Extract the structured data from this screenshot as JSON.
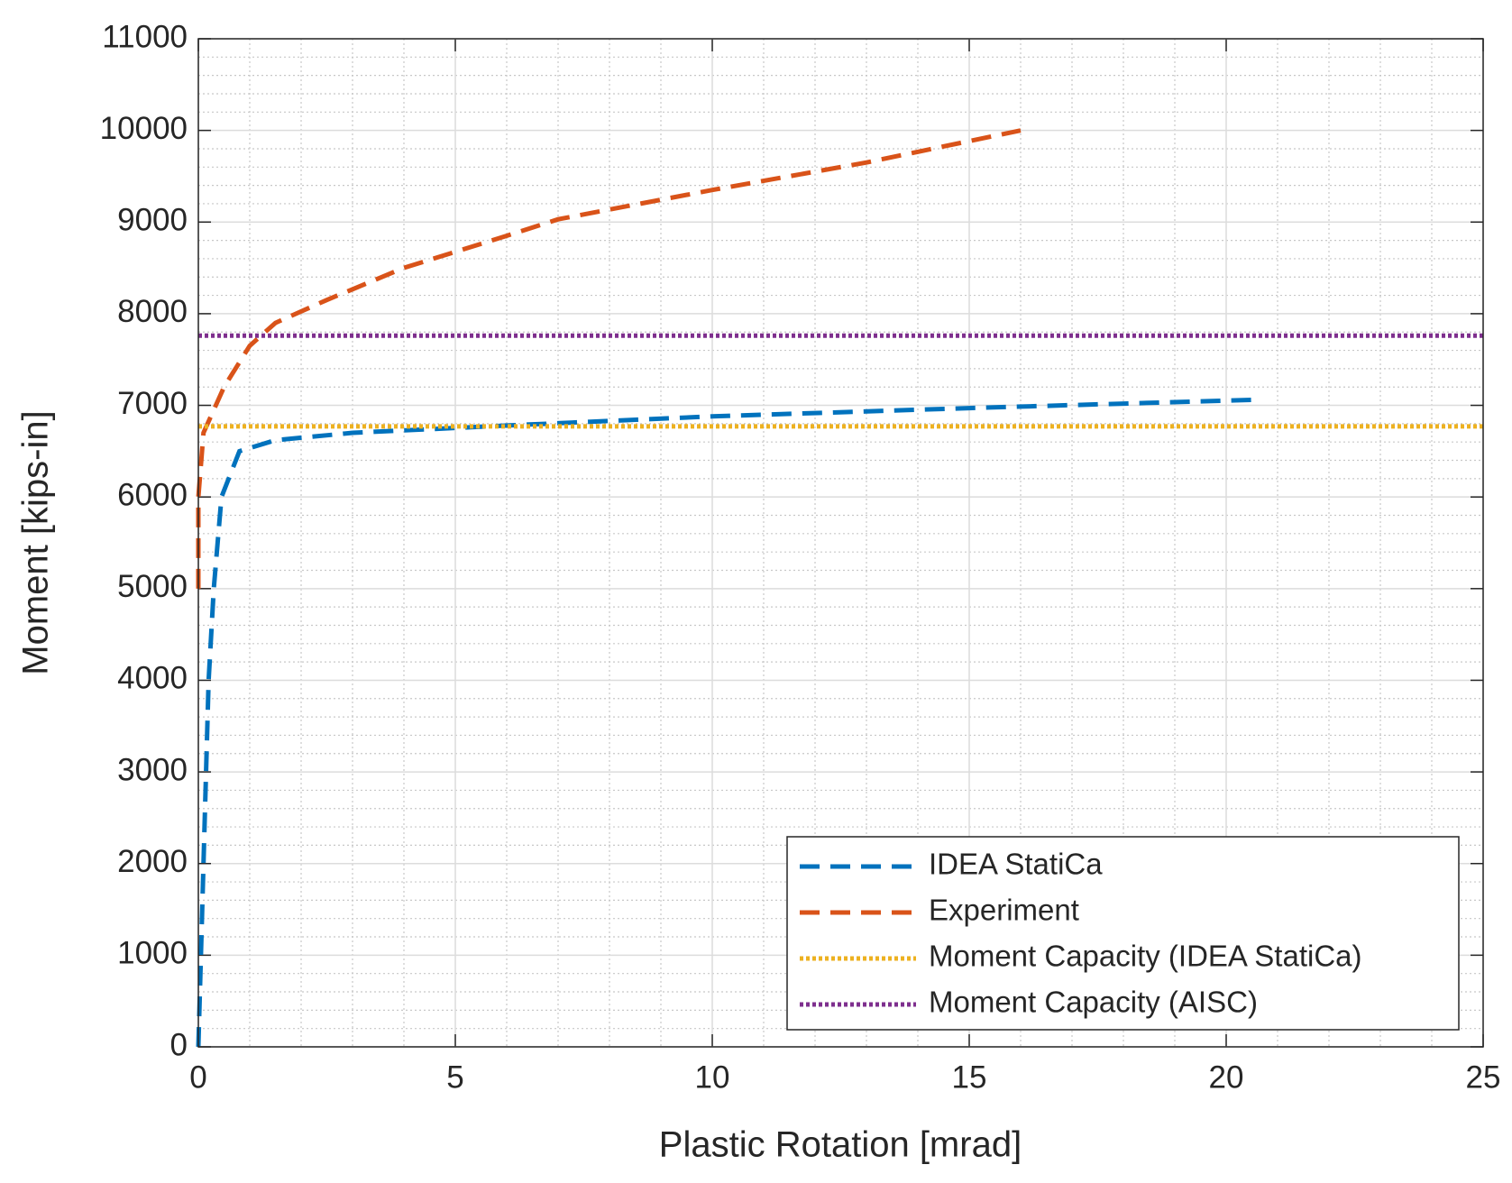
{
  "chart_data": {
    "type": "line",
    "xlabel": "Plastic Rotation [mrad]",
    "ylabel": "Moment [kips-in]",
    "xlim": [
      0,
      25
    ],
    "xticks": [
      0,
      5,
      10,
      15,
      20,
      25
    ],
    "ylim": [
      0,
      11000
    ],
    "yticks": [
      0,
      1000,
      2000,
      3000,
      4000,
      5000,
      6000,
      7000,
      8000,
      9000,
      10000,
      11000
    ],
    "grid": true,
    "minor_grid": true,
    "legend": "lower right",
    "series": [
      {
        "name": "IDEA StatiCa",
        "color": "#0072BD",
        "line_style": "dashed",
        "x": [
          0,
          0.05,
          0.1,
          0.15,
          0.2,
          0.3,
          0.45,
          0.8,
          1.5,
          3,
          6,
          10,
          15,
          20.5
        ],
        "values": [
          0,
          1000,
          2000,
          3000,
          4000,
          5000,
          6000,
          6500,
          6620,
          6700,
          6780,
          6880,
          6970,
          7060
        ]
      },
      {
        "name": "Experiment",
        "color": "#D95319",
        "line_style": "dashed",
        "x": [
          0,
          0,
          0.1,
          0.5,
          1,
          1.5,
          2.5,
          4,
          6,
          7,
          10,
          13,
          16
        ],
        "values": [
          5000,
          6000,
          6700,
          7200,
          7650,
          7900,
          8150,
          8500,
          8850,
          9030,
          9350,
          9650,
          10000
        ]
      },
      {
        "name": "Moment Capacity (IDEA StatiCa)",
        "color": "#EDB120",
        "line_style": "dotted",
        "x": [
          0,
          25
        ],
        "values": [
          6770,
          6770
        ]
      },
      {
        "name": "Moment Capacity (AISC)",
        "color": "#7E2F8E",
        "line_style": "dotted",
        "x": [
          0,
          25
        ],
        "values": [
          7760,
          7760
        ]
      }
    ]
  }
}
